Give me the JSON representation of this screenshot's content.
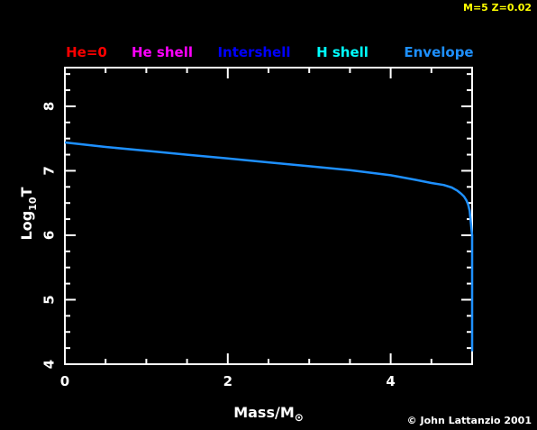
{
  "header": {
    "model_label": "M=5 Z=0.02",
    "model_label_color": "#ffff00",
    "credit": "© John Lattanzio 2001"
  },
  "legend": [
    {
      "label": "He=0",
      "color": "#ff0000"
    },
    {
      "label": "He shell",
      "color": "#ff00ff"
    },
    {
      "label": "Intershell",
      "color": "#0000ff"
    },
    {
      "label": "H shell",
      "color": "#00ffff"
    },
    {
      "label": "Envelope",
      "color": "#1e90ff"
    }
  ],
  "chart_data": {
    "type": "line",
    "xlabel": "Mass/M",
    "xlabel_symbol": "⊙",
    "ylabel": "Log",
    "ylabel_subscript": "10",
    "ylabel_suffix": "T",
    "xlim": [
      0,
      5
    ],
    "ylim": [
      4,
      8.6
    ],
    "xticks": [
      0,
      2,
      4
    ],
    "yticks": [
      4,
      5,
      6,
      7,
      8
    ],
    "grid": false,
    "legend_position": "top",
    "series": [
      {
        "name": "Envelope",
        "color": "#1e90ff",
        "x": [
          0,
          0.5,
          1,
          1.5,
          2,
          2.5,
          3,
          3.5,
          4,
          4.3,
          4.5,
          4.65,
          4.75,
          4.82,
          4.87,
          4.9,
          4.93,
          4.95,
          4.97,
          4.98,
          5.0,
          5.0,
          5.0
        ],
        "y": [
          7.44,
          7.37,
          7.31,
          7.25,
          7.19,
          7.13,
          7.07,
          7.01,
          6.93,
          6.86,
          6.81,
          6.78,
          6.74,
          6.69,
          6.64,
          6.6,
          6.54,
          6.48,
          6.38,
          6.25,
          6.0,
          5.0,
          4.2
        ]
      }
    ]
  }
}
